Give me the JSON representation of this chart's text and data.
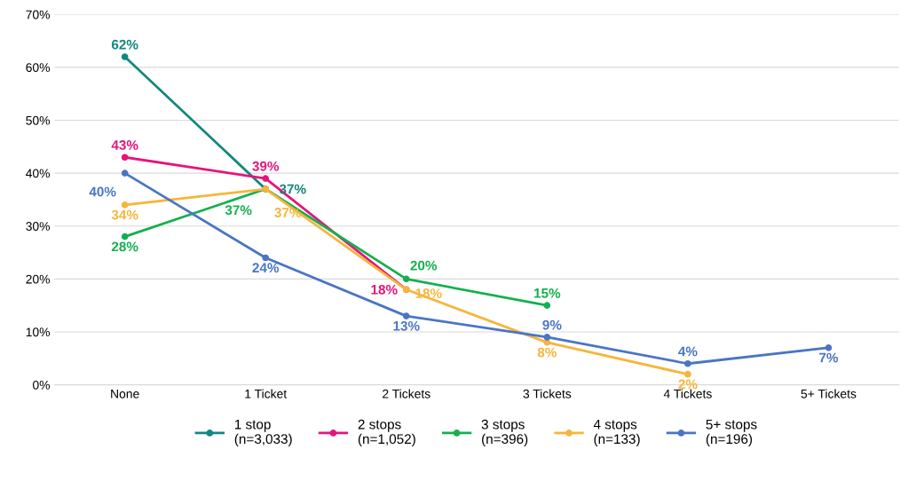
{
  "chart_data": {
    "type": "line",
    "categories": [
      "None",
      "1 Ticket",
      "2 Tickets",
      "3 Tickets",
      "4 Tickets",
      "5+ Tickets"
    ],
    "series": [
      {
        "name": "1 stop\n(n=3,033)",
        "color": "#11877f",
        "values": [
          62,
          37,
          null,
          null,
          null,
          null
        ],
        "value_labels": [
          "62%",
          "37%",
          null,
          null,
          null,
          null
        ]
      },
      {
        "name": "2 stops\n(n=1,052)",
        "color": "#e5157a",
        "values": [
          43,
          39,
          18,
          null,
          null,
          null
        ],
        "value_labels": [
          "43%",
          "39%",
          "18%",
          null,
          null,
          null
        ]
      },
      {
        "name": "3 stops\n(n=396)",
        "color": "#14b04f",
        "values": [
          28,
          37,
          20,
          15,
          null,
          null
        ],
        "value_labels": [
          "28%",
          "37%",
          "20%",
          "15%",
          null,
          null
        ]
      },
      {
        "name": "4 stops\n(n=133)",
        "color": "#f6b53b",
        "values": [
          34,
          37,
          18,
          8,
          2,
          null
        ],
        "value_labels": [
          "34%",
          "37%",
          "18%",
          "8%",
          "2%",
          null
        ]
      },
      {
        "name": "5+ stops\n(n=196)",
        "color": "#4a75c5",
        "values": [
          40,
          24,
          13,
          9,
          4,
          7
        ],
        "value_labels": [
          "40%",
          "24%",
          "13%",
          "9%",
          "4%",
          "7%"
        ]
      }
    ],
    "ylim": [
      0,
      70
    ],
    "yticks": [
      {
        "value": 0,
        "label": "0%"
      },
      {
        "value": 10,
        "label": "10%"
      },
      {
        "value": 20,
        "label": "20%"
      },
      {
        "value": 30,
        "label": "30%"
      },
      {
        "value": 40,
        "label": "40%"
      },
      {
        "value": 50,
        "label": "50%"
      },
      {
        "value": 60,
        "label": "60%"
      },
      {
        "value": 70,
        "label": "70%"
      }
    ],
    "grid": "y",
    "legend": "bottom",
    "marker": "circle",
    "line_style": "solid"
  }
}
